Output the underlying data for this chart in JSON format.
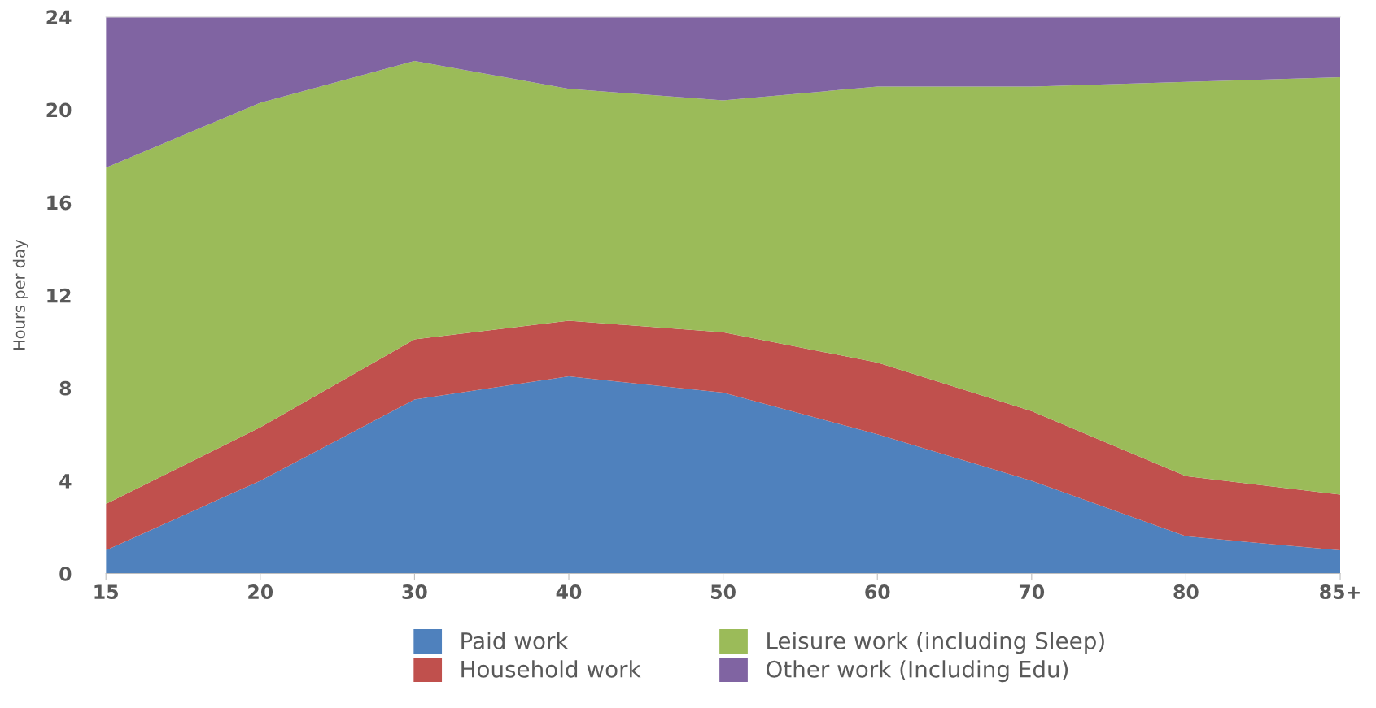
{
  "chart_data": {
    "type": "area",
    "stacked": true,
    "ylabel": "Hours per day",
    "categories": [
      "15",
      "20",
      "30",
      "40",
      "50",
      "60",
      "70",
      "80",
      "85+"
    ],
    "series": [
      {
        "name": "Paid work",
        "color": "#4f81bd",
        "values": [
          1.0,
          4.0,
          7.5,
          8.5,
          7.8,
          6.0,
          4.0,
          1.6,
          1.0
        ]
      },
      {
        "name": "Household work",
        "color": "#c0504d",
        "values": [
          2.0,
          2.3,
          2.6,
          2.4,
          2.6,
          3.1,
          3.0,
          2.6,
          2.4
        ]
      },
      {
        "name": "Leisure work (including Sleep)",
        "color": "#9bbb59",
        "values": [
          14.5,
          14.0,
          12.0,
          10.0,
          10.0,
          11.9,
          14.0,
          17.0,
          18.0
        ]
      },
      {
        "name": "Other work (Including Edu)",
        "color": "#8064a2",
        "values": [
          6.5,
          3.7,
          1.9,
          3.1,
          3.6,
          3.0,
          3.0,
          2.8,
          2.6
        ]
      }
    ],
    "ylim": [
      0,
      24
    ],
    "yticks": [
      0,
      4,
      8,
      12,
      16,
      20,
      24
    ],
    "grid": false,
    "legend": "bottom"
  }
}
